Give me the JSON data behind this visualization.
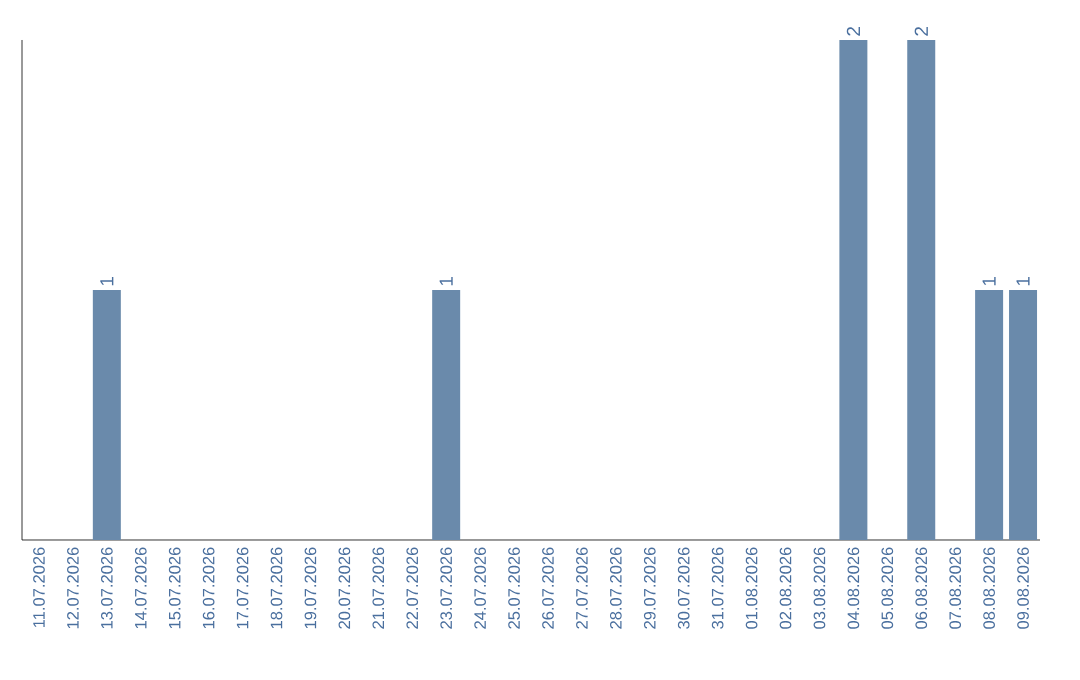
{
  "chart_data": {
    "type": "bar",
    "categories": [
      "11.07.2026",
      "12.07.2026",
      "13.07.2026",
      "14.07.2026",
      "15.07.2026",
      "16.07.2026",
      "17.07.2026",
      "18.07.2026",
      "19.07.2026",
      "20.07.2026",
      "21.07.2026",
      "22.07.2026",
      "23.07.2026",
      "24.07.2026",
      "25.07.2026",
      "26.07.2026",
      "27.07.2026",
      "28.07.2026",
      "29.07.2026",
      "30.07.2026",
      "31.07.2026",
      "01.08.2026",
      "02.08.2026",
      "03.08.2026",
      "04.08.2026",
      "05.08.2026",
      "06.08.2026",
      "07.08.2026",
      "08.08.2026",
      "09.08.2026"
    ],
    "values": [
      0,
      0,
      1,
      0,
      0,
      0,
      0,
      0,
      0,
      0,
      0,
      0,
      1,
      0,
      0,
      0,
      0,
      0,
      0,
      0,
      0,
      0,
      0,
      0,
      2,
      0,
      2,
      0,
      1,
      1
    ],
    "value_labels": [
      null,
      null,
      "1",
      null,
      null,
      null,
      null,
      null,
      null,
      null,
      null,
      null,
      "1",
      null,
      null,
      null,
      null,
      null,
      null,
      null,
      null,
      null,
      null,
      null,
      "2",
      null,
      "2",
      null,
      "1",
      "1"
    ],
    "color": "#6a8aab"
  }
}
